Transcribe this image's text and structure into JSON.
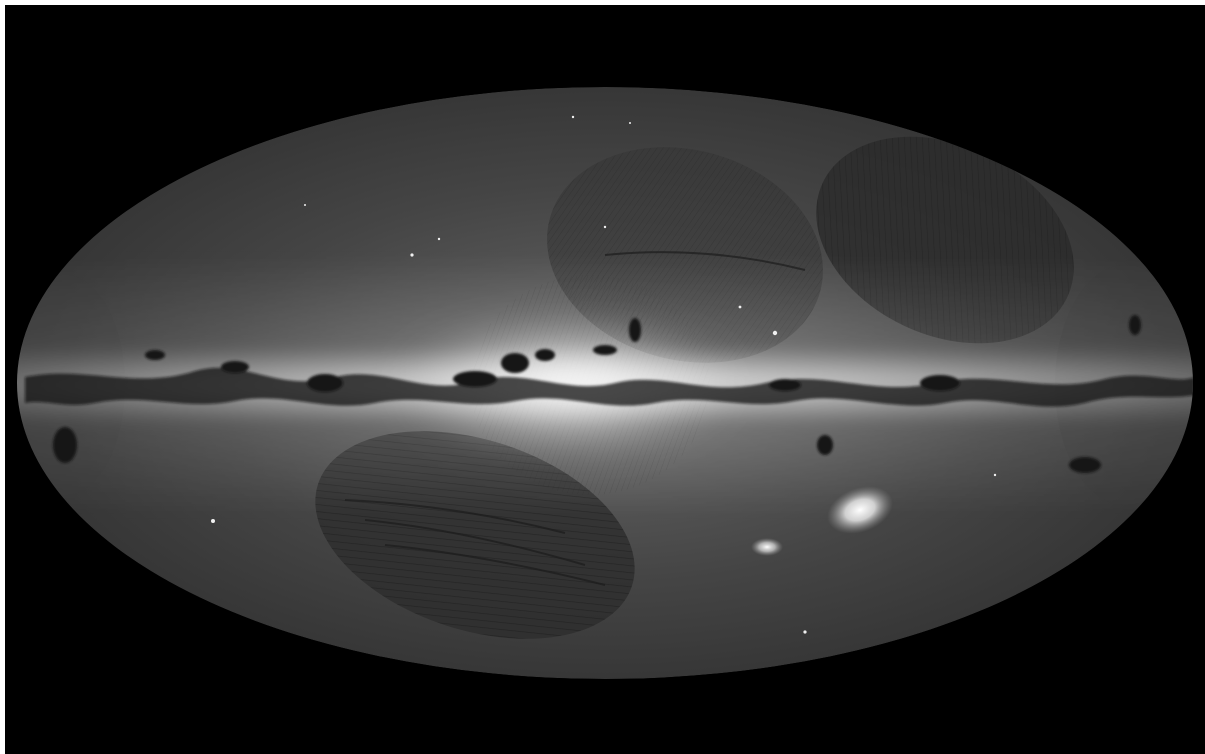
{
  "scene": {
    "subject": "all-sky-star-density-map",
    "projection": "ellipse",
    "colors": {
      "background": "#000000",
      "frame_edge": "#ffffff",
      "sky_base": "#3a3a3a",
      "galactic_band_core": "#f2f2f2",
      "dust_lanes": "#121212",
      "magellanic_clouds": "#f5f5f5"
    }
  }
}
